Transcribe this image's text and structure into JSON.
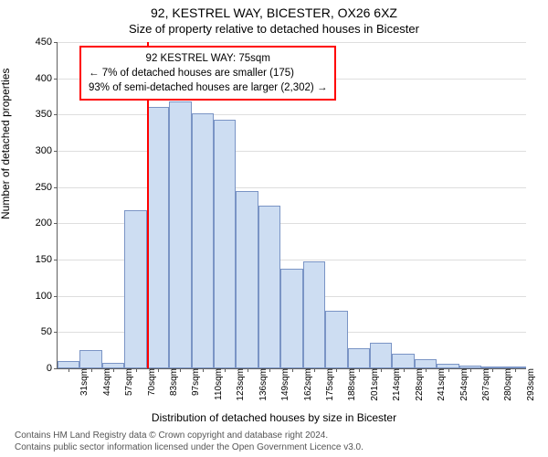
{
  "chart": {
    "type": "histogram",
    "title_line1": "92, KESTREL WAY, BICESTER, OX26 6XZ",
    "title_line2": "Size of property relative to detached houses in Bicester",
    "ylabel": "Number of detached properties",
    "xlabel": "Distribution of detached houses by size in Bicester",
    "ylim": [
      0,
      450
    ],
    "ytick_step": 50,
    "yticks": [
      0,
      50,
      100,
      150,
      200,
      250,
      300,
      350,
      400,
      450
    ],
    "categories": [
      "31sqm",
      "44sqm",
      "57sqm",
      "70sqm",
      "83sqm",
      "97sqm",
      "110sqm",
      "123sqm",
      "136sqm",
      "149sqm",
      "162sqm",
      "175sqm",
      "188sqm",
      "201sqm",
      "214sqm",
      "228sqm",
      "241sqm",
      "254sqm",
      "267sqm",
      "280sqm",
      "293sqm"
    ],
    "values": [
      10,
      25,
      8,
      218,
      360,
      368,
      352,
      343,
      245,
      225,
      138,
      148,
      80,
      28,
      35,
      20,
      12,
      6,
      4,
      3,
      2
    ],
    "bar_fill": "#cdddf2",
    "bar_border": "#7a94c5",
    "grid_color": "#dedede",
    "axis_color": "#5f5f5f",
    "background_color": "#ffffff",
    "marker": {
      "color": "#ff0000",
      "after_category_index": 3
    },
    "annotation": {
      "border_color": "#ff0000",
      "lines": [
        "92 KESTREL WAY: 75sqm",
        "← 7% of detached houses are smaller (175)",
        "93% of semi-detached houses are larger (2,302) →"
      ]
    },
    "title_fontsize": 14,
    "subtitle_fontsize": 13,
    "label_fontsize": 12,
    "tick_fontsize": 11
  },
  "footer": {
    "line1": "Contains HM Land Registry data © Crown copyright and database right 2024.",
    "line2": "Contains public sector information licensed under the Open Government Licence v3.0."
  }
}
